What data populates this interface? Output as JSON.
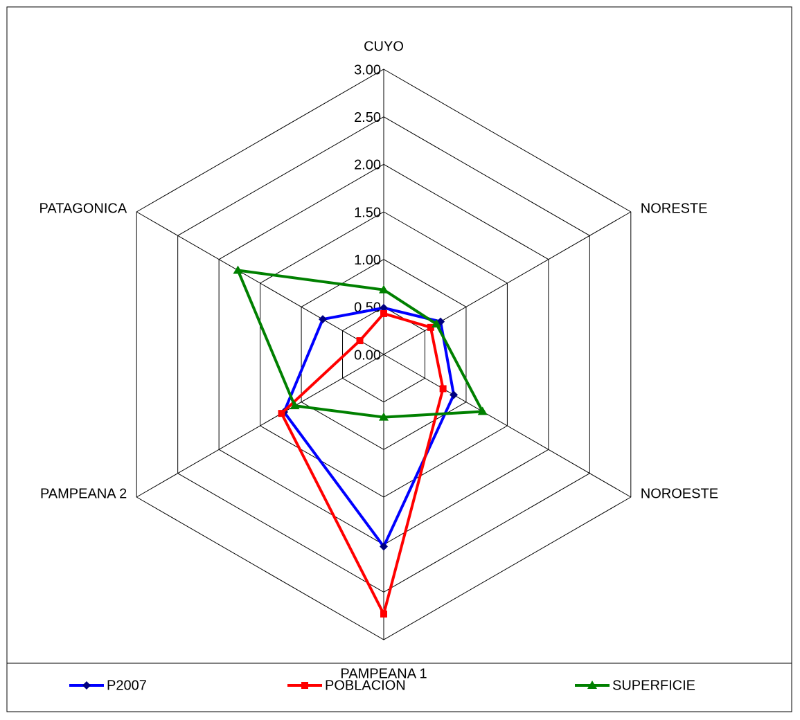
{
  "chart_data": {
    "type": "radar",
    "categories": [
      "CUYO",
      "NORESTE",
      "NOROESTE",
      "PAMPEANA 1",
      "PAMPEANA 2",
      "PATAGONICA"
    ],
    "series": [
      {
        "name": "P2007",
        "color": "#0000ff",
        "marker_color": "#000080",
        "marker": "diamond",
        "values": [
          0.49,
          0.69,
          0.85,
          2.02,
          1.21,
          0.74
        ]
      },
      {
        "name": "POBLACION",
        "color": "#ff0000",
        "marker_color": "#ff0000",
        "marker": "square",
        "values": [
          0.43,
          0.57,
          0.72,
          2.73,
          1.24,
          0.29
        ]
      },
      {
        "name": "SUPERFICIE",
        "color": "#008000",
        "marker_color": "#008000",
        "marker": "triangle",
        "values": [
          0.68,
          0.64,
          1.2,
          0.66,
          1.08,
          1.77
        ]
      }
    ],
    "ylim": [
      0,
      3
    ],
    "yticks": [
      {
        "value": 0,
        "label": "0.00"
      },
      {
        "value": 0.5,
        "label": "0.50"
      },
      {
        "value": 1,
        "label": "1.00"
      },
      {
        "value": 1.5,
        "label": "1.50"
      },
      {
        "value": 2,
        "label": "2.00"
      },
      {
        "value": 2.5,
        "label": "2.50"
      },
      {
        "value": 3,
        "label": "3.00"
      }
    ],
    "grid": true,
    "legend": "bottom"
  }
}
